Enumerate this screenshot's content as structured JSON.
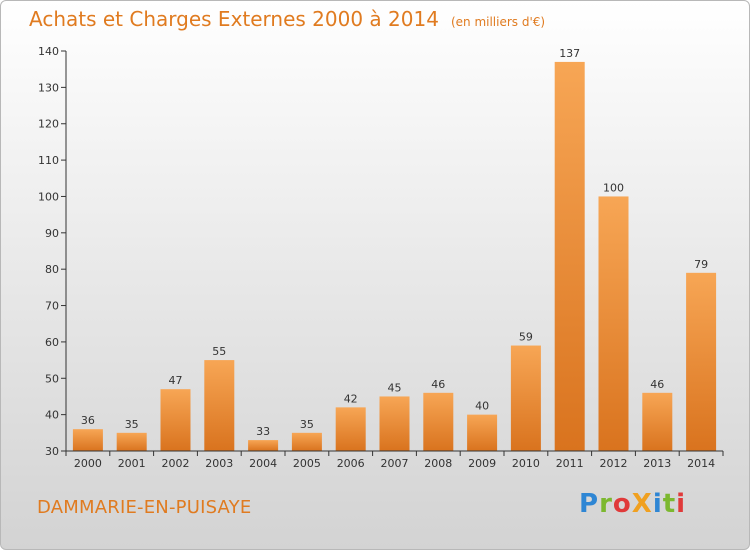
{
  "title": "Achats et Charges Externes 2000 à 2014",
  "subtitle": "(en milliers d'€)",
  "city": "DAMMARIE-EN-PUISAYE",
  "logo": {
    "text": "ProXiti",
    "letters": [
      {
        "char": "P",
        "color": "#2e86d4"
      },
      {
        "char": "r",
        "color": "#7cb82f"
      },
      {
        "char": "o",
        "color": "#e03a3a"
      },
      {
        "char": "X",
        "color": "#f0a020"
      },
      {
        "char": "i",
        "color": "#2e86d4"
      },
      {
        "char": "t",
        "color": "#7cb82f"
      },
      {
        "char": "i",
        "color": "#e03a3a"
      }
    ]
  },
  "colors": {
    "accent": "#e07b20",
    "bar_light": "#f7a655",
    "bar_dark": "#d9731e",
    "axis": "#333333"
  },
  "chart_data": {
    "type": "bar",
    "categories": [
      "2000",
      "2001",
      "2002",
      "2003",
      "2004",
      "2005",
      "2006",
      "2007",
      "2008",
      "2009",
      "2010",
      "2011",
      "2012",
      "2013",
      "2014"
    ],
    "values": [
      36,
      35,
      47,
      55,
      33,
      35,
      42,
      45,
      46,
      40,
      59,
      137,
      100,
      46,
      79
    ],
    "title": "Achats et Charges Externes 2000 à 2014",
    "xlabel": "",
    "ylabel": "",
    "ylim": [
      30,
      140
    ],
    "yticks": [
      30,
      40,
      50,
      60,
      70,
      80,
      90,
      100,
      110,
      120,
      130,
      140
    ],
    "grid": false,
    "legend": "none"
  }
}
